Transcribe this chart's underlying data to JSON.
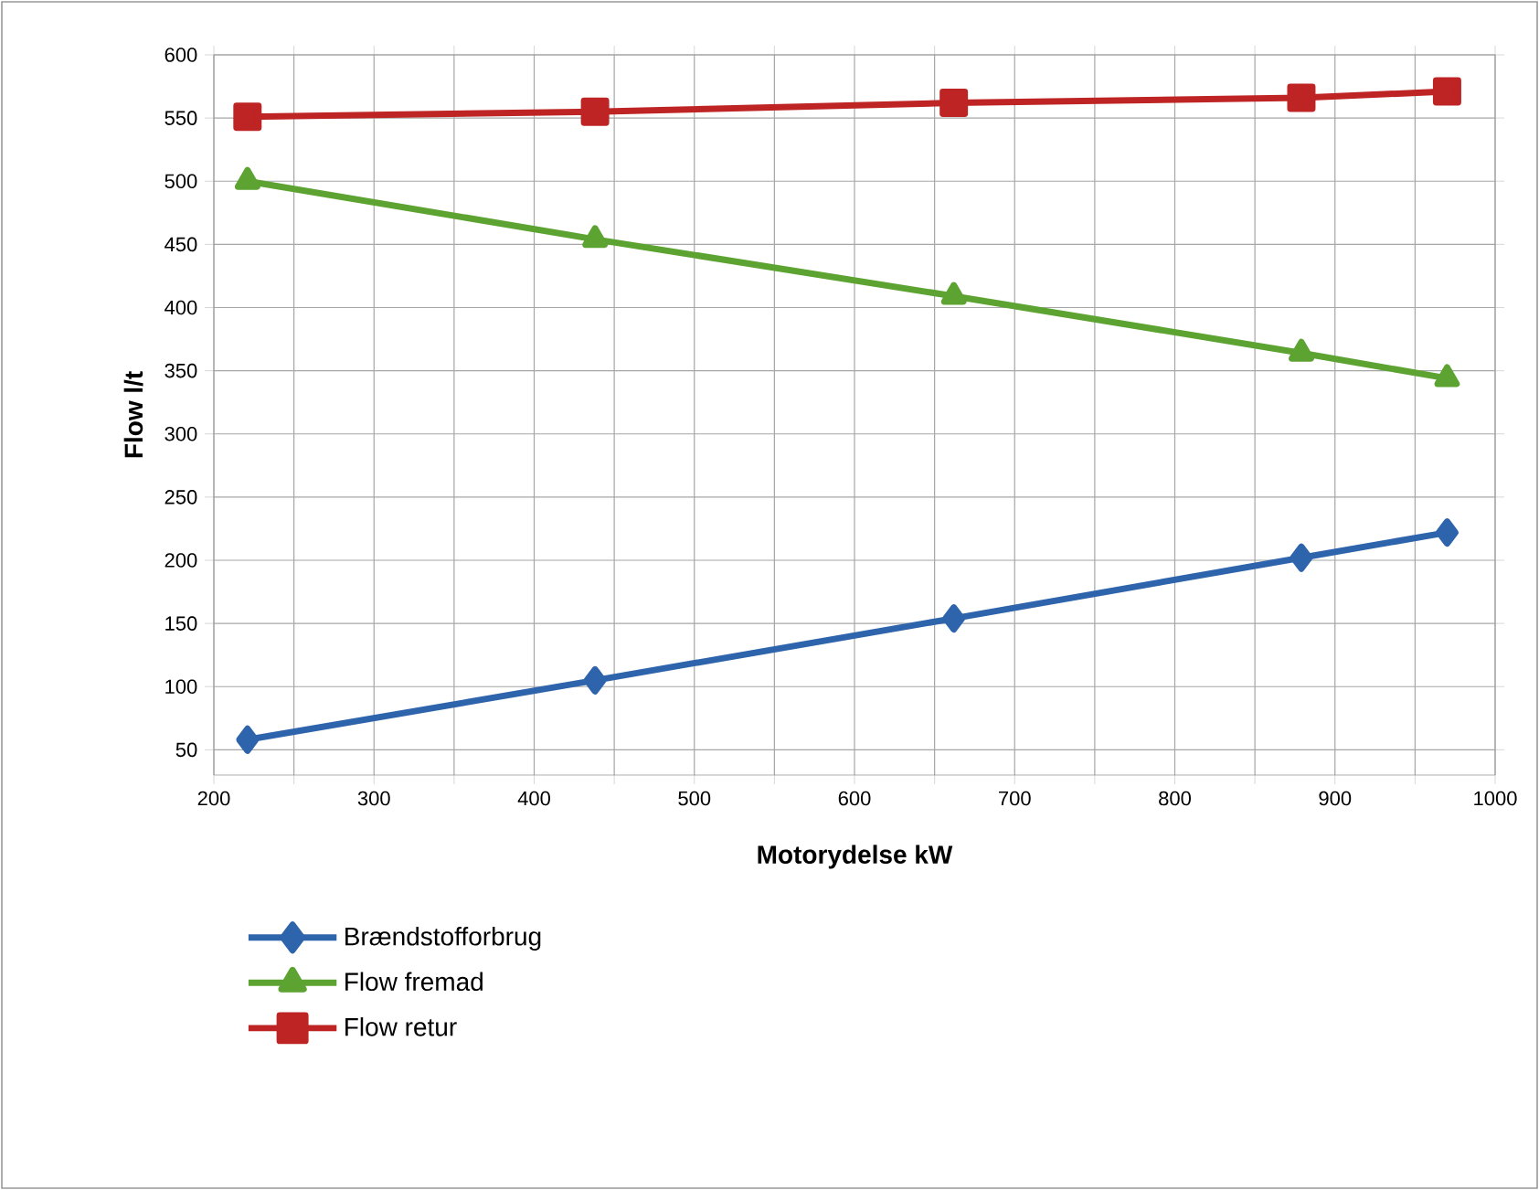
{
  "chart_data": {
    "type": "line",
    "xlabel": "Motorydelse kW",
    "ylabel": "Flow l/t",
    "series": [
      {
        "name": "Brændstofforbrug",
        "color": "#2e64ab",
        "marker": "diamond",
        "x": [
          221,
          438,
          662,
          879,
          970
        ],
        "values": [
          58,
          105,
          154,
          202,
          222
        ]
      },
      {
        "name": "Flow fremad",
        "color": "#5ca331",
        "marker": "triangle",
        "x": [
          221,
          438,
          662,
          879,
          970
        ],
        "values": [
          500,
          454,
          409,
          364,
          344
        ]
      },
      {
        "name": "Flow retur",
        "color": "#be2424",
        "marker": "square",
        "x": [
          221,
          438,
          662,
          879,
          970
        ],
        "values": [
          551,
          555,
          562,
          566,
          571
        ]
      }
    ],
    "xlim": [
      200,
      1000
    ],
    "ylim": [
      30,
      600
    ],
    "xticks": [
      200,
      {
        "value": 250,
        "label": null
      },
      300,
      {
        "value": 350,
        "label": null
      },
      400,
      {
        "value": 450,
        "label": null
      },
      500,
      {
        "value": 550,
        "label": null
      },
      600,
      {
        "value": 650,
        "label": null
      },
      700,
      {
        "value": 750,
        "label": null
      },
      800,
      {
        "value": 850,
        "label": null
      },
      900,
      {
        "value": 950,
        "label": null
      },
      1000
    ],
    "yticks": [
      50,
      100,
      150,
      200,
      250,
      300,
      350,
      400,
      450,
      500,
      550,
      600
    ],
    "grid": true,
    "legend": "bottom",
    "line_style": "solid"
  }
}
